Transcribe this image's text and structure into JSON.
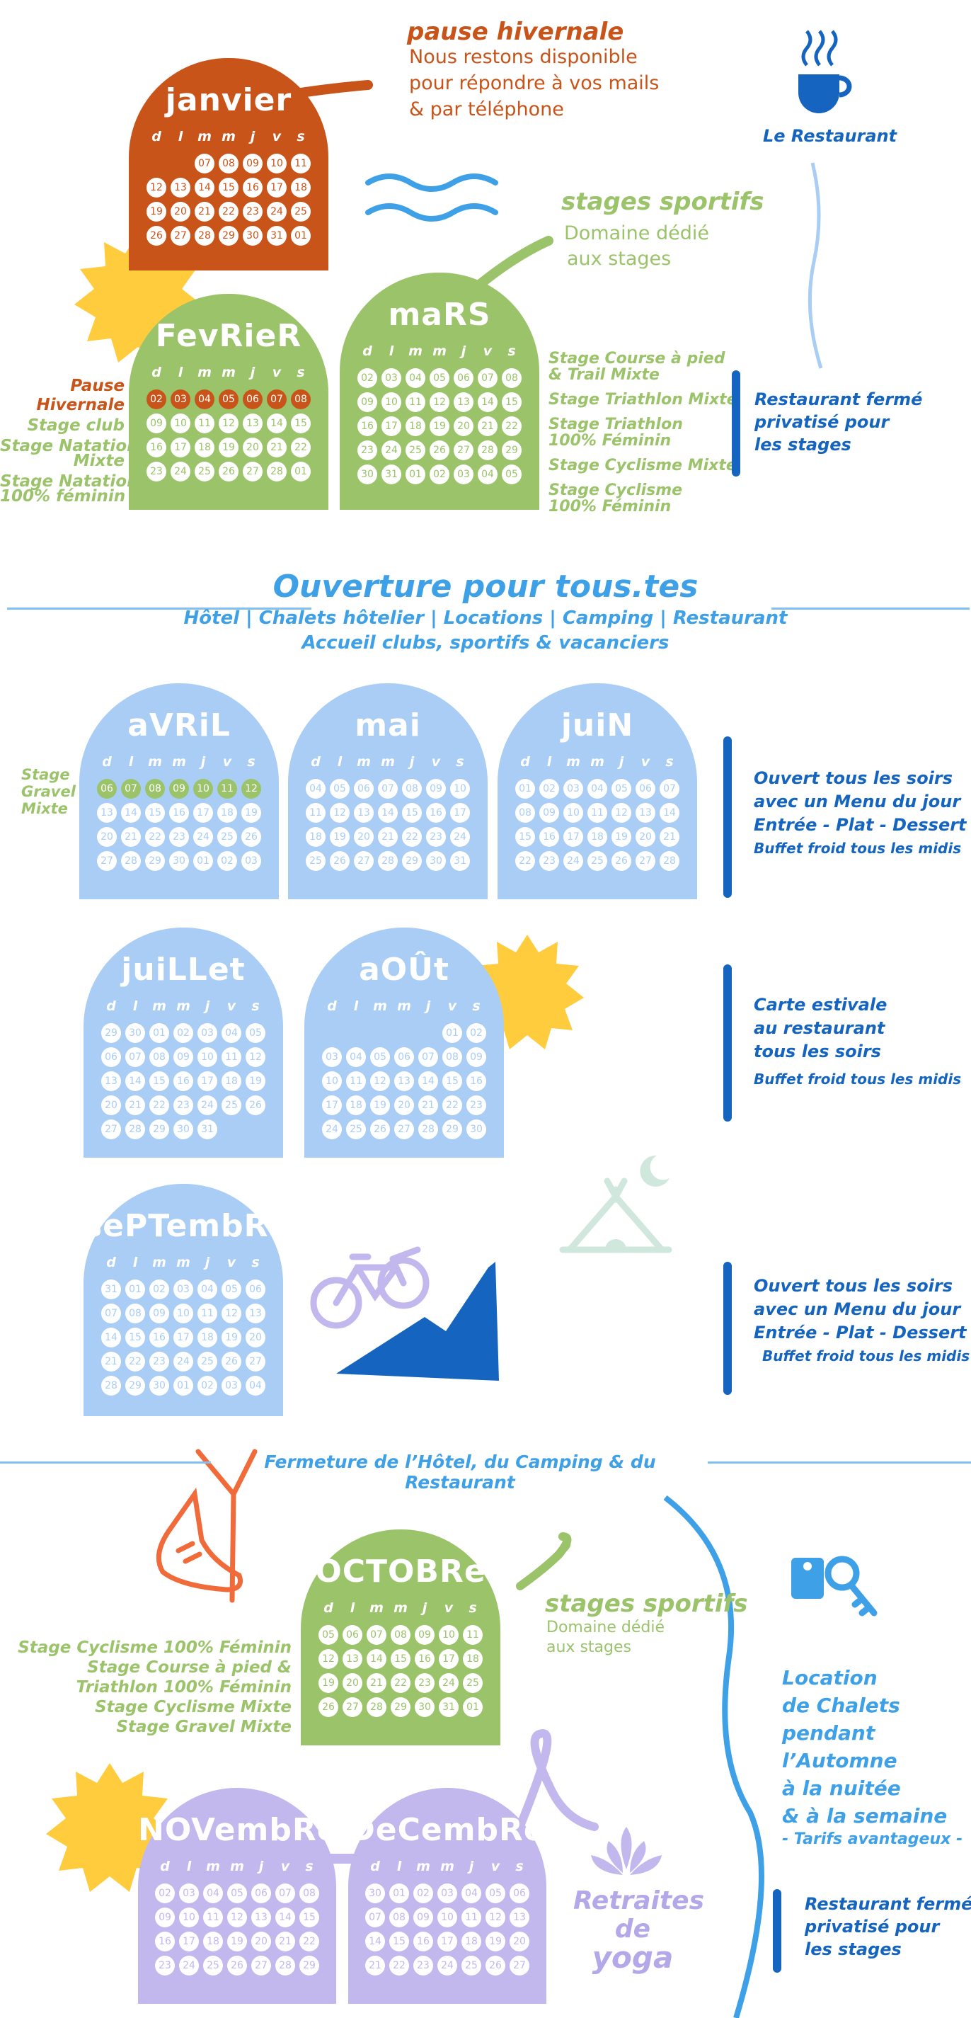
{
  "colors": {
    "orange": "#c9541a",
    "green": "#9bc36a",
    "lightblue": "#a9cdf4",
    "purple": "#c2b8ee",
    "darkblue": "#1565c0",
    "blue": "#3ea0e6",
    "yellow": "#ffcc3d"
  },
  "weekday_headers": [
    "d",
    "l",
    "m",
    "m",
    "j",
    "v",
    "s"
  ],
  "months": {
    "janvier": {
      "name": "janvier",
      "rows": [
        [
          "",
          "",
          "07",
          "08",
          "09",
          "10",
          "11"
        ],
        [
          "12",
          "13",
          "14",
          "15",
          "16",
          "17",
          "18"
        ],
        [
          "19",
          "20",
          "21",
          "22",
          "23",
          "24",
          "25"
        ],
        [
          "26",
          "27",
          "28",
          "29",
          "30",
          "31",
          "01"
        ]
      ]
    },
    "fevrier": {
      "name": "FevRieR",
      "rows": [
        [
          "02",
          "03",
          "04",
          "05",
          "06",
          "07",
          "08"
        ],
        [
          "09",
          "10",
          "11",
          "12",
          "13",
          "14",
          "15"
        ],
        [
          "16",
          "17",
          "18",
          "19",
          "20",
          "21",
          "22"
        ],
        [
          "23",
          "24",
          "25",
          "26",
          "27",
          "28",
          "01"
        ]
      ]
    },
    "mars": {
      "name": "maRS",
      "rows": [
        [
          "02",
          "03",
          "04",
          "05",
          "06",
          "07",
          "08"
        ],
        [
          "09",
          "10",
          "11",
          "12",
          "13",
          "14",
          "15"
        ],
        [
          "16",
          "17",
          "18",
          "19",
          "20",
          "21",
          "22"
        ],
        [
          "23",
          "24",
          "25",
          "26",
          "27",
          "28",
          "29"
        ],
        [
          "30",
          "31",
          "01",
          "02",
          "03",
          "04",
          "05"
        ]
      ]
    },
    "avril": {
      "name": "aVRiL",
      "rows": [
        [
          "06",
          "07",
          "08",
          "09",
          "10",
          "11",
          "12"
        ],
        [
          "13",
          "14",
          "15",
          "16",
          "17",
          "18",
          "19"
        ],
        [
          "20",
          "21",
          "22",
          "23",
          "24",
          "25",
          "26"
        ],
        [
          "27",
          "28",
          "29",
          "30",
          "01",
          "02",
          "03"
        ]
      ]
    },
    "mai": {
      "name": "mai",
      "rows": [
        [
          "04",
          "05",
          "06",
          "07",
          "08",
          "09",
          "10"
        ],
        [
          "11",
          "12",
          "13",
          "14",
          "15",
          "16",
          "17"
        ],
        [
          "18",
          "19",
          "20",
          "21",
          "22",
          "23",
          "24"
        ],
        [
          "25",
          "26",
          "27",
          "28",
          "29",
          "30",
          "31"
        ]
      ]
    },
    "juin": {
      "name": "juiN",
      "rows": [
        [
          "01",
          "02",
          "03",
          "04",
          "05",
          "06",
          "07"
        ],
        [
          "08",
          "09",
          "10",
          "11",
          "12",
          "13",
          "14"
        ],
        [
          "15",
          "16",
          "17",
          "18",
          "19",
          "20",
          "21"
        ],
        [
          "22",
          "23",
          "24",
          "25",
          "26",
          "27",
          "28"
        ]
      ]
    },
    "juillet": {
      "name": "juiLLet",
      "rows": [
        [
          "29",
          "30",
          "01",
          "02",
          "03",
          "04",
          "05"
        ],
        [
          "06",
          "07",
          "08",
          "09",
          "10",
          "11",
          "12"
        ],
        [
          "13",
          "14",
          "15",
          "16",
          "17",
          "18",
          "19"
        ],
        [
          "20",
          "21",
          "22",
          "23",
          "24",
          "25",
          "26"
        ],
        [
          "27",
          "28",
          "29",
          "30",
          "31",
          "",
          ""
        ]
      ]
    },
    "aout": {
      "name": "aOÛt",
      "rows": [
        [
          "",
          "",
          "",
          "",
          "",
          "01",
          "02"
        ],
        [
          "03",
          "04",
          "05",
          "06",
          "07",
          "08",
          "09"
        ],
        [
          "10",
          "11",
          "12",
          "13",
          "14",
          "15",
          "16"
        ],
        [
          "17",
          "18",
          "19",
          "20",
          "21",
          "22",
          "23"
        ],
        [
          "24",
          "25",
          "26",
          "27",
          "28",
          "29",
          "30"
        ]
      ]
    },
    "septembre": {
      "name": "sePTembRe",
      "rows": [
        [
          "31",
          "01",
          "02",
          "03",
          "04",
          "05",
          "06"
        ],
        [
          "07",
          "08",
          "09",
          "10",
          "11",
          "12",
          "13"
        ],
        [
          "14",
          "15",
          "16",
          "17",
          "18",
          "19",
          "20"
        ],
        [
          "21",
          "22",
          "23",
          "24",
          "25",
          "26",
          "27"
        ],
        [
          "28",
          "29",
          "30",
          "01",
          "02",
          "03",
          "04"
        ]
      ]
    },
    "octobre": {
      "name": "OCTOBRe",
      "rows": [
        [
          "05",
          "06",
          "07",
          "08",
          "09",
          "10",
          "11"
        ],
        [
          "12",
          "13",
          "14",
          "15",
          "16",
          "17",
          "18"
        ],
        [
          "19",
          "20",
          "21",
          "22",
          "23",
          "24",
          "25"
        ],
        [
          "26",
          "27",
          "28",
          "29",
          "30",
          "31",
          "01"
        ]
      ]
    },
    "novembre": {
      "name": "NOVembRe",
      "rows": [
        [
          "02",
          "03",
          "04",
          "05",
          "06",
          "07",
          "08"
        ],
        [
          "09",
          "10",
          "11",
          "12",
          "13",
          "14",
          "15"
        ],
        [
          "16",
          "17",
          "18",
          "19",
          "20",
          "21",
          "22"
        ],
        [
          "23",
          "24",
          "25",
          "26",
          "27",
          "28",
          "29"
        ]
      ]
    },
    "decembre": {
      "name": "DeCembRe",
      "rows": [
        [
          "30",
          "01",
          "02",
          "03",
          "04",
          "05",
          "06"
        ],
        [
          "07",
          "08",
          "09",
          "10",
          "11",
          "12",
          "13"
        ],
        [
          "14",
          "15",
          "16",
          "17",
          "18",
          "19",
          "20"
        ],
        [
          "21",
          "22",
          "23",
          "24",
          "25",
          "26",
          "27"
        ]
      ]
    }
  },
  "winter": {
    "title": "pause hivernale",
    "lines": [
      "Nous restons disponible",
      "pour répondre à vos mails",
      "& par téléphone"
    ]
  },
  "restaurant_label": "Le Restaurant",
  "stages_top": {
    "title": "stages sportifs",
    "lines": [
      "Domaine dédié",
      "aux stages"
    ]
  },
  "feb_legend": [
    "Pause",
    "Hivernale",
    "Stage club",
    "Stage Natation",
    "Mixte",
    "Stage Natation",
    "100% féminin"
  ],
  "mars_legend": [
    "Stage Course à pied",
    "& Trail Mixte",
    "Stage Triathlon Mixte",
    "Stage Triathlon",
    "100% Féminin",
    "Stage Cyclisme Mixte",
    "Stage Cyclisme",
    "100% Féminin"
  ],
  "restaurant_closed_top": [
    "Restaurant fermé",
    "privatisé pour",
    "les stages"
  ],
  "opening": {
    "title": "Ouverture pour tous.tes",
    "line1": "Hôtel | Chalets hôtelier | Locations | Camping | Restaurant",
    "line2": "Accueil clubs, sportifs & vacanciers"
  },
  "avril_legend": [
    "Stage",
    "Gravel",
    "Mixte"
  ],
  "spring_text": {
    "lines": [
      "Ouvert tous les soirs",
      "avec un Menu du jour",
      "Entrée - Plat - Dessert"
    ],
    "small": "Buffet froid tous les midis"
  },
  "summer_text": {
    "lines": [
      "Carte estivale",
      "au restaurant",
      "tous les soirs"
    ],
    "small": "Buffet froid tous les midis"
  },
  "sept_text": {
    "lines": [
      "Ouvert tous les soirs",
      "avec un Menu du jour",
      "Entrée - Plat - Dessert"
    ],
    "small": "Buffet froid tous les midis"
  },
  "closing": "Fermeture de l’Hôtel, du Camping & du Restaurant",
  "oct_legend": [
    "Stage Cyclisme 100% Féminin",
    "Stage Course à pied &",
    "Triathlon 100% Féminin",
    "Stage Cyclisme Mixte",
    "Stage Gravel Mixte"
  ],
  "stages_bottom": {
    "title": "stages sportifs",
    "lines": [
      "Domaine dédié",
      "aux stages"
    ]
  },
  "chalets": {
    "lines": [
      "Location",
      "de Chalets",
      "pendant",
      "l’Automne",
      "à la nuitée",
      "& à la semaine"
    ],
    "small": "- Tarifs avantageux -"
  },
  "yoga": [
    "Retraites",
    "de",
    "yoga"
  ],
  "restaurant_closed_bottom": [
    "Restaurant fermé",
    "privatisé pour",
    "les stages"
  ]
}
